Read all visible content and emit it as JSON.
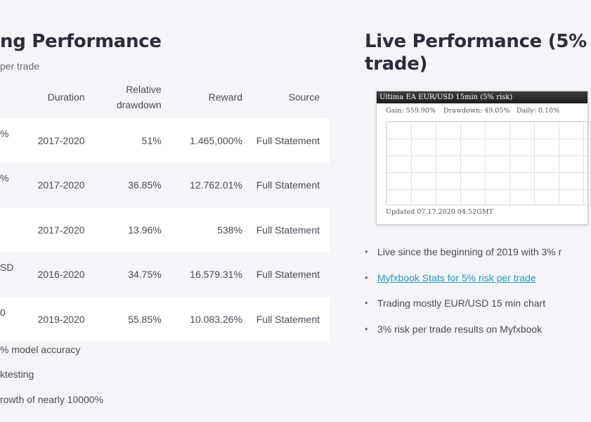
{
  "backtesting": {
    "title": "ng Performance",
    "subtitle": "per trade",
    "columns": {
      "duration": "Duration",
      "drawdown": "Relative drawdown",
      "reward": "Reward",
      "source": "Source"
    },
    "rows": [
      {
        "name": "%",
        "duration": "2017-2020",
        "drawdown": "51%",
        "reward": "1.465,000%",
        "source": "Full Statement"
      },
      {
        "name": "%",
        "duration": "2017-2020",
        "drawdown": "36.85%",
        "reward": "12.762.01%",
        "source": "Full Statement"
      },
      {
        "name": "",
        "duration": "2017-2020",
        "drawdown": "13.96%",
        "reward": "538%",
        "source": "Full Statement"
      },
      {
        "name": "SD",
        "duration": "2016-2020",
        "drawdown": "34.75%",
        "reward": "16.579.31%",
        "source": "Full Statement"
      },
      {
        "name": "0",
        "duration": "2019-2020",
        "drawdown": "55.85%",
        "reward": "10.083.26%",
        "source": "Full Statement"
      }
    ],
    "bullets": [
      "% model accuracy",
      "ktesting",
      "rowth of nearly 10000%"
    ]
  },
  "live": {
    "title_line1": "Live Performance (5%",
    "title_line2": "trade)",
    "widget": {
      "header": "Ultima EA EUR/USD 15min (5% risk)",
      "gain": "Gain: 559.90%",
      "drawdown": "Drawdown: 49.05%",
      "daily": "Daily: 0.10%",
      "updated": "Updated 07.17.2020 04:52GMT"
    },
    "bullets": {
      "b1": "Live since the beginning of 2019 with 3% r",
      "link": "Myfxbook Stats for 5% risk per trade",
      "b3": "Trading mostly EUR/USD 15 min chart",
      "b4": "3% risk per trade results on Myfxbook"
    }
  }
}
